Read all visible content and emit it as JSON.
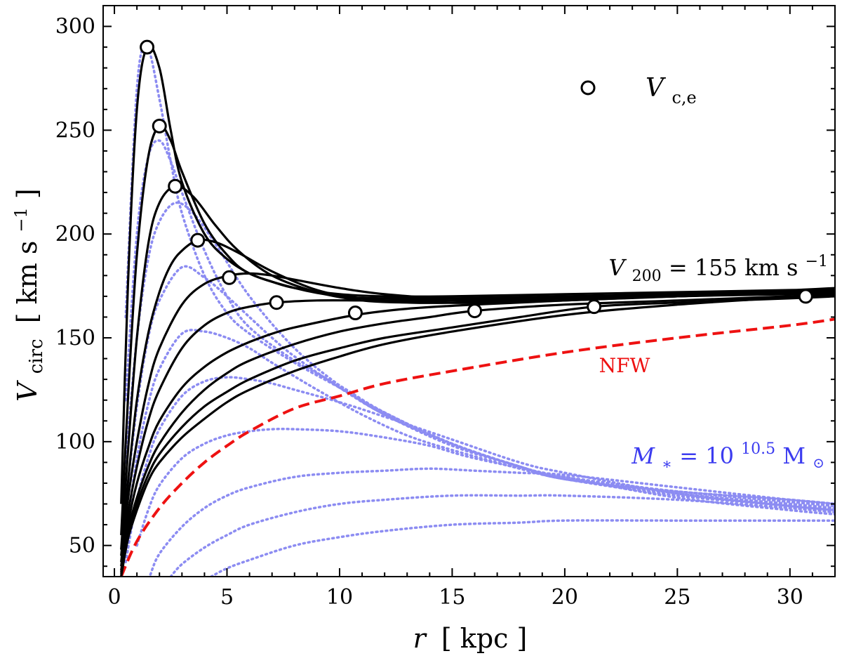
{
  "chart_data": {
    "type": "line",
    "xlabel": {
      "sym": "r",
      "unit": "[ kpc ]"
    },
    "ylabel": {
      "sym": "V",
      "sub": "circ",
      "unit": "[ km s",
      "sup": "−1",
      "close": " ]"
    },
    "xlim": [
      -0.5,
      32
    ],
    "ylim": [
      35,
      310
    ],
    "xticks": [
      0,
      5,
      10,
      15,
      20,
      25,
      30
    ],
    "yticks": [
      50,
      100,
      150,
      200,
      250,
      300
    ],
    "annotations": {
      "v200": {
        "prefix": "V",
        "sub": "200",
        "rest": " = 155 km s",
        "sup": "−1"
      },
      "nfw": "NFW",
      "mstar": {
        "prefix": "M",
        "sub": "∗",
        "eq": " = 10",
        "sup": "10.5",
        "unit": " M",
        "sunsub": "⊙"
      },
      "legend": {
        "prefix": "V",
        "sub": "c,e"
      }
    },
    "colors": {
      "total": "#000000",
      "nfw": "#ee1111",
      "stellar": "#8c8cf2",
      "marker_fill": "#ffffff"
    },
    "nfw": {
      "x": [
        0.3,
        1,
        2,
        3,
        4,
        5,
        6,
        8,
        10,
        12,
        15,
        20,
        25,
        30,
        32
      ],
      "y": [
        35,
        52,
        68,
        80,
        90,
        98,
        105,
        116,
        122,
        128,
        134,
        143,
        150,
        156,
        159
      ]
    },
    "total_curves": [
      {
        "name": "Re=1.45",
        "x": [
          0.3,
          0.6,
          1,
          1.45,
          2,
          2.5,
          3,
          4,
          5,
          6,
          7,
          8,
          10,
          12,
          15,
          20,
          25,
          30,
          32
        ],
        "y": [
          70,
          175,
          260,
          290,
          280,
          250,
          225,
          200,
          188,
          181,
          177,
          174,
          171,
          170,
          170,
          171,
          172,
          173,
          174
        ]
      },
      {
        "name": "Re=2.0",
        "x": [
          0.3,
          0.6,
          1,
          1.5,
          2,
          2.5,
          3,
          4,
          5,
          6,
          8,
          10,
          12,
          15,
          20,
          25,
          30,
          32
        ],
        "y": [
          55,
          120,
          190,
          237,
          252,
          245,
          230,
          205,
          190,
          181,
          174,
          170,
          169,
          169,
          170,
          171,
          172,
          173
        ]
      },
      {
        "name": "Re=2.7",
        "x": [
          0.3,
          0.6,
          1,
          1.5,
          2,
          2.7,
          3.5,
          4.5,
          5.5,
          7,
          9,
          11,
          13,
          15,
          20,
          25,
          30,
          32
        ],
        "y": [
          48,
          95,
          150,
          195,
          215,
          223,
          218,
          204,
          192,
          180,
          172,
          168,
          167,
          167,
          169,
          171,
          172,
          173
        ]
      },
      {
        "name": "Re=3.7",
        "x": [
          0.3,
          0.6,
          1,
          1.5,
          2,
          2.5,
          3,
          3.7,
          4.5,
          5.5,
          7,
          9,
          11,
          14,
          17,
          20,
          25,
          30,
          32
        ],
        "y": [
          45,
          80,
          120,
          152,
          172,
          185,
          192,
          197,
          196,
          191,
          182,
          173,
          169,
          167,
          167,
          168,
          170,
          172,
          173
        ]
      },
      {
        "name": "Re=5.1",
        "x": [
          0.3,
          0.6,
          1,
          1.5,
          2,
          3,
          4,
          5.1,
          6,
          7,
          8,
          10,
          12,
          15,
          20,
          25,
          30,
          32
        ],
        "y": [
          42,
          72,
          100,
          127,
          145,
          166,
          176,
          180,
          181,
          180,
          178,
          174,
          171,
          169,
          169,
          170,
          172,
          173
        ]
      },
      {
        "name": "Re=7.2",
        "x": [
          0.3,
          0.6,
          1,
          1.5,
          2,
          3,
          4,
          5,
          6,
          7.2,
          9,
          11,
          13,
          15,
          20,
          25,
          30,
          32
        ],
        "y": [
          40,
          65,
          88,
          110,
          125,
          145,
          156,
          162,
          165,
          167,
          168,
          168,
          168,
          168,
          169,
          170,
          172,
          173
        ]
      },
      {
        "name": "Re=10.7",
        "x": [
          0.3,
          0.6,
          1,
          1.5,
          2,
          3,
          4,
          5,
          6,
          7,
          8,
          10.7,
          13,
          16,
          20,
          25,
          30,
          32
        ],
        "y": [
          38,
          60,
          80,
          97,
          110,
          126,
          136,
          143,
          148,
          152,
          155,
          161,
          164,
          166,
          168,
          170,
          171,
          172
        ]
      },
      {
        "name": "Re=16.0",
        "x": [
          0.3,
          0.6,
          1,
          1.5,
          2,
          3,
          4,
          5,
          6,
          8,
          10,
          12,
          14,
          16,
          20,
          25,
          30,
          32
        ],
        "y": [
          37,
          57,
          73,
          88,
          99,
          114,
          125,
          133,
          139,
          147,
          153,
          157,
          160,
          163,
          166,
          168,
          170,
          171
        ]
      },
      {
        "name": "Re=21.3",
        "x": [
          0.3,
          0.6,
          1,
          1.5,
          2,
          3,
          4,
          5,
          6,
          8,
          10,
          12,
          15,
          18,
          21.3,
          25,
          30,
          32
        ],
        "y": [
          36,
          55,
          70,
          84,
          94,
          107,
          117,
          124,
          130,
          139,
          145,
          150,
          155,
          160,
          165,
          167,
          169,
          170
        ]
      },
      {
        "name": "Re=30.7",
        "x": [
          0.3,
          0.6,
          1,
          1.5,
          2,
          3,
          4,
          5,
          6,
          8,
          10,
          12,
          15,
          20,
          25,
          30.7,
          32
        ],
        "y": [
          35,
          53,
          67,
          81,
          90,
          102,
          111,
          119,
          125,
          134,
          141,
          147,
          153,
          161,
          166,
          170,
          171
        ]
      }
    ],
    "stellar_curves": [
      {
        "name": "s1",
        "x": [
          0.5,
          1,
          1.45,
          2,
          2.5,
          3,
          4,
          5,
          6,
          8,
          10,
          12,
          15,
          18,
          20,
          25,
          30,
          32
        ],
        "y": [
          160,
          270,
          290,
          265,
          235,
          210,
          180,
          162,
          152,
          138,
          126,
          114,
          99,
          88,
          82,
          76,
          72,
          70
        ]
      },
      {
        "name": "s2",
        "x": [
          0.5,
          1,
          1.5,
          2,
          2.5,
          3,
          4,
          5,
          6,
          8,
          10,
          12,
          15,
          18,
          20,
          25,
          30,
          32
        ],
        "y": [
          120,
          200,
          237,
          245,
          235,
          220,
          192,
          170,
          155,
          139,
          127,
          114,
          99,
          88,
          82,
          76,
          72,
          70
        ]
      },
      {
        "name": "s3",
        "x": [
          0.5,
          1,
          1.5,
          2,
          2.7,
          3.5,
          4.5,
          6,
          8,
          10,
          12,
          15,
          18,
          20,
          25,
          30,
          32
        ],
        "y": [
          90,
          150,
          188,
          206,
          215,
          210,
          195,
          170,
          145,
          127,
          113,
          99,
          88,
          83,
          76,
          71,
          69
        ]
      },
      {
        "name": "s4",
        "x": [
          0.5,
          1,
          1.5,
          2,
          3,
          4,
          5,
          6,
          7,
          8,
          10,
          12,
          15,
          18,
          20,
          25,
          30,
          32
        ],
        "y": [
          70,
          117,
          150,
          168,
          184,
          179,
          170,
          160,
          150,
          141,
          126,
          113,
          98,
          88,
          82,
          75,
          70,
          68
        ]
      },
      {
        "name": "s5",
        "x": [
          0.5,
          1,
          1.5,
          2,
          3,
          4,
          5,
          6,
          7,
          9,
          11,
          13,
          15,
          18,
          20,
          25,
          30,
          32
        ],
        "y": [
          55,
          92,
          118,
          135,
          152,
          153,
          150,
          145,
          138,
          125,
          113,
          103,
          96,
          87,
          82,
          74,
          69,
          67
        ]
      },
      {
        "name": "s6",
        "x": [
          0.5,
          1,
          1.5,
          2,
          3,
          4,
          5,
          6,
          7,
          8,
          10,
          12,
          15,
          18,
          20,
          25,
          30,
          32
        ],
        "y": [
          42,
          72,
          92,
          106,
          122,
          129,
          131,
          130,
          128,
          125,
          119,
          112,
          101,
          90,
          85,
          75,
          69,
          67
        ]
      },
      {
        "name": "s7",
        "x": [
          1,
          1.5,
          2,
          3,
          4,
          5,
          6,
          7,
          8,
          10,
          12,
          14,
          16,
          20,
          25,
          30,
          32
        ],
        "y": [
          50,
          67,
          79,
          92,
          99,
          103,
          105,
          106,
          106,
          105,
          102,
          98,
          92,
          83,
          73,
          67,
          65
        ]
      },
      {
        "name": "s8",
        "x": [
          1.6,
          2,
          3,
          4,
          5,
          6,
          8,
          10,
          12,
          14,
          16,
          18,
          20,
          25,
          30,
          32
        ],
        "y": [
          36,
          46,
          59,
          68,
          74,
          78,
          83,
          85,
          86,
          87,
          86,
          85,
          84,
          78,
          72,
          70
        ]
      },
      {
        "name": "s9",
        "x": [
          2.5,
          3,
          4,
          5,
          6,
          8,
          10,
          12,
          15,
          18,
          20,
          25,
          30,
          32
        ],
        "y": [
          35,
          41,
          49,
          55,
          60,
          66,
          70,
          72,
          74,
          74,
          74,
          72,
          68,
          66
        ]
      },
      {
        "name": "s10",
        "x": [
          4.3,
          5,
          6,
          8,
          10,
          12,
          15,
          18,
          20,
          25,
          30,
          32
        ],
        "y": [
          35,
          39,
          43,
          50,
          54,
          57,
          60,
          61,
          62,
          62,
          62,
          62
        ]
      }
    ],
    "markers": [
      {
        "x": 1.45,
        "y": 290
      },
      {
        "x": 2.0,
        "y": 252
      },
      {
        "x": 2.7,
        "y": 223
      },
      {
        "x": 3.7,
        "y": 197
      },
      {
        "x": 5.1,
        "y": 179
      },
      {
        "x": 7.2,
        "y": 167
      },
      {
        "x": 10.7,
        "y": 162
      },
      {
        "x": 16.0,
        "y": 163
      },
      {
        "x": 21.3,
        "y": 165
      },
      {
        "x": 30.7,
        "y": 170
      }
    ]
  }
}
